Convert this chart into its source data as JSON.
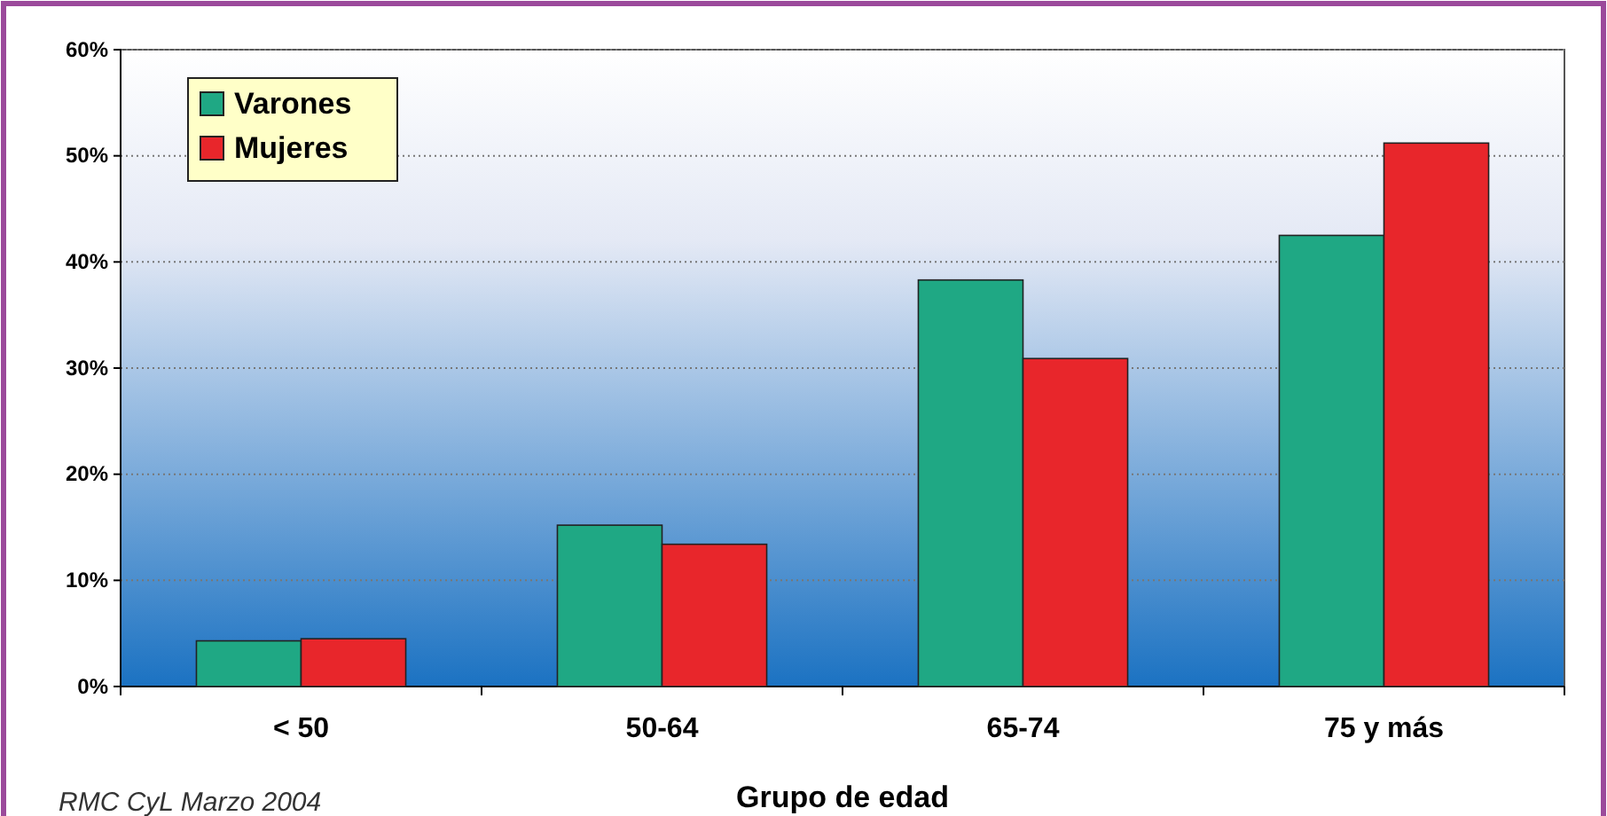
{
  "chart_data": {
    "type": "bar",
    "xlabel": "Grupo de edad",
    "categories": [
      "< 50",
      "50-64",
      "65-74",
      "75 y más"
    ],
    "series": [
      {
        "name": "Varones",
        "color": "#1fa884",
        "values": [
          4.3,
          15.2,
          38.3,
          42.5
        ]
      },
      {
        "name": "Mujeres",
        "color": "#e8262b",
        "values": [
          4.5,
          13.4,
          30.9,
          51.2
        ]
      }
    ],
    "ylim": [
      0,
      60
    ],
    "yticks": [
      {
        "value": 0,
        "label": "0%"
      },
      {
        "value": 10,
        "label": "10%"
      },
      {
        "value": 20,
        "label": "20%"
      },
      {
        "value": 30,
        "label": "30%"
      },
      {
        "value": 40,
        "label": "40%"
      },
      {
        "value": 50,
        "label": "50%"
      },
      {
        "value": 60,
        "label": "60%"
      }
    ],
    "grid": "y",
    "legend": "top left",
    "annotations": [
      "RMC CyL Marzo 2004"
    ]
  }
}
